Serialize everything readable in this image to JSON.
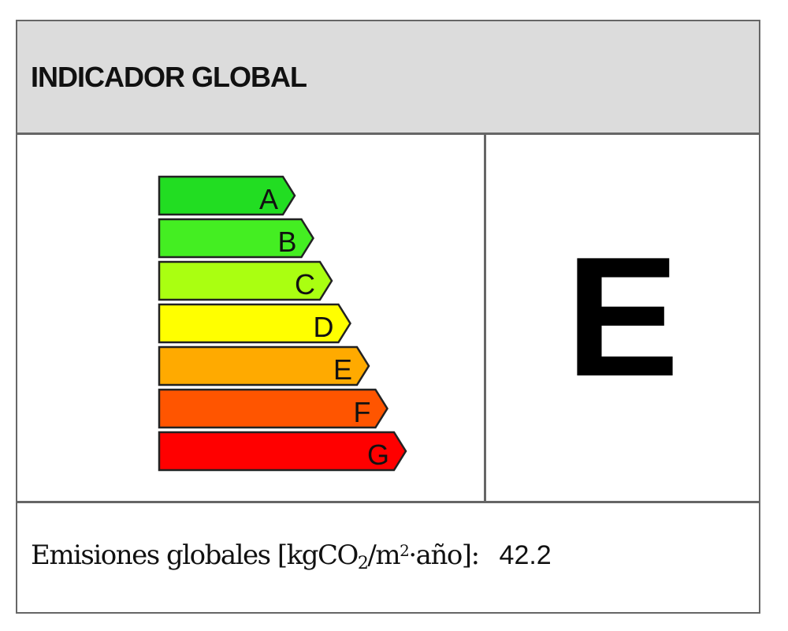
{
  "header": {
    "title": "INDICADOR GLOBAL"
  },
  "scale": {
    "classes": [
      {
        "letter": "A",
        "color": "#22dd22"
      },
      {
        "letter": "B",
        "color": "#44ee22"
      },
      {
        "letter": "C",
        "color": "#aaff11"
      },
      {
        "letter": "D",
        "color": "#ffff00"
      },
      {
        "letter": "E",
        "color": "#ffaa00"
      },
      {
        "letter": "F",
        "color": "#ff5500"
      },
      {
        "letter": "G",
        "color": "#ff0000"
      }
    ]
  },
  "rating": {
    "value": "E"
  },
  "emissions": {
    "label_pre": "Emisiones globales [kgCO",
    "sub": "2",
    "label_mid": "/m",
    "sup": "2",
    "label_post": "·año]:",
    "value": "42.2"
  }
}
